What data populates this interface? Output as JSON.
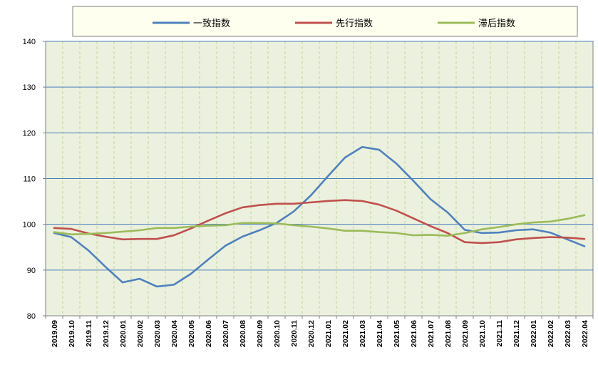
{
  "chart_data": {
    "type": "line",
    "title": "",
    "xlabel": "",
    "ylabel": "",
    "ylim": [
      80,
      140
    ],
    "yticks": [
      80,
      90,
      100,
      110,
      120,
      130,
      140
    ],
    "grid": "horizontal solid, vertical dashed",
    "legend_position": "top",
    "plot_background": "#ebf1de",
    "categories": [
      "2019.09",
      "2019.10",
      "2019.11",
      "2019.12",
      "2020.01",
      "2020.02",
      "2020.03",
      "2020.04",
      "2020.05",
      "2020.06",
      "2020.07",
      "2020.08",
      "2020.09",
      "2020.10",
      "2020.11",
      "2020.12",
      "2021.01",
      "2021.02",
      "2021.03",
      "2021.04",
      "2021.05",
      "2021.06",
      "2021.07",
      "2021.08",
      "2021.09",
      "2021.10",
      "2021.11",
      "2021.12",
      "2022.01",
      "2022.02",
      "2022.03",
      "2022.04"
    ],
    "series": [
      {
        "name": "一致指数",
        "color": "#4f81bd",
        "values": [
          98.1,
          97.2,
          94.3,
          90.7,
          87.3,
          88.1,
          86.4,
          86.8,
          89.2,
          92.3,
          95.3,
          97.3,
          98.7,
          100.3,
          102.8,
          106.3,
          110.5,
          114.6,
          116.9,
          116.3,
          113.3,
          109.5,
          105.5,
          102.6,
          98.8,
          98.1,
          98.2,
          98.7,
          98.9,
          98.2,
          96.7,
          95.2
        ]
      },
      {
        "name": "先行指数",
        "color": "#c0504d",
        "values": [
          99.2,
          99.0,
          98.0,
          97.3,
          96.7,
          96.8,
          96.8,
          97.6,
          99.1,
          100.8,
          102.4,
          103.7,
          104.2,
          104.5,
          104.5,
          104.8,
          105.1,
          105.3,
          105.1,
          104.3,
          103.0,
          101.3,
          99.6,
          98.1,
          96.1,
          95.9,
          96.1,
          96.7,
          97.0,
          97.2,
          97.1,
          96.8
        ]
      },
      {
        "name": "滞后指数",
        "color": "#9bbb59",
        "values": [
          98.3,
          97.8,
          97.9,
          98.1,
          98.4,
          98.7,
          99.2,
          99.2,
          99.5,
          99.7,
          99.8,
          100.3,
          100.3,
          100.2,
          99.8,
          99.5,
          99.1,
          98.6,
          98.6,
          98.3,
          98.1,
          97.6,
          97.7,
          97.5,
          98.1,
          98.9,
          99.4,
          100.0,
          100.4,
          100.6,
          101.2,
          102.0
        ]
      }
    ]
  }
}
